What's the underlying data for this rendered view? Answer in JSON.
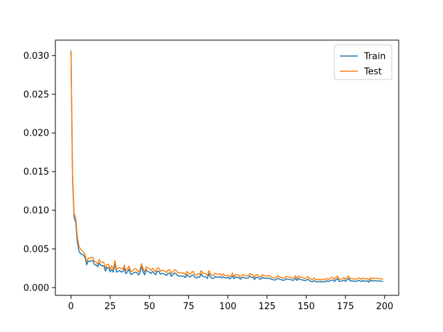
{
  "chart_data": {
    "type": "line",
    "title": "",
    "xlabel": "",
    "ylabel": "",
    "xlim": [
      -9.95,
      208.95
    ],
    "ylim": [
      -0.001,
      0.032
    ],
    "xticks": [
      0,
      25,
      50,
      75,
      100,
      125,
      150,
      175,
      200
    ],
    "yticks": [
      0.0,
      0.005,
      0.01,
      0.015,
      0.02,
      0.025,
      0.03
    ],
    "ytick_labels": [
      "0.000",
      "0.005",
      "0.010",
      "0.015",
      "0.020",
      "0.025",
      "0.030"
    ],
    "grid": false,
    "legend": {
      "placement": "top-right",
      "entries": [
        "Train",
        "Test"
      ]
    },
    "series": [
      {
        "name": "Train",
        "color": "#1f77b4",
        "x_range": [
          0,
          199
        ],
        "knots": [
          [
            0,
            0.0305
          ],
          [
            1,
            0.014
          ],
          [
            2,
            0.009
          ],
          [
            3,
            0.0085
          ],
          [
            4,
            0.006
          ],
          [
            5,
            0.0048
          ],
          [
            6,
            0.0044
          ],
          [
            8,
            0.0042
          ],
          [
            10,
            0.0034
          ],
          [
            15,
            0.0031
          ],
          [
            20,
            0.0026
          ],
          [
            25,
            0.0022
          ],
          [
            30,
            0.0022
          ],
          [
            35,
            0.002
          ],
          [
            40,
            0.0018
          ],
          [
            45,
            0.0019
          ],
          [
            50,
            0.0018
          ],
          [
            55,
            0.0019
          ],
          [
            60,
            0.0017
          ],
          [
            65,
            0.0016
          ],
          [
            70,
            0.0015
          ],
          [
            75,
            0.0015
          ],
          [
            80,
            0.0014
          ],
          [
            90,
            0.0013
          ],
          [
            100,
            0.0013
          ],
          [
            110,
            0.0012
          ],
          [
            120,
            0.0012
          ],
          [
            130,
            0.0011
          ],
          [
            140,
            0.0011
          ],
          [
            150,
            0.001
          ],
          [
            155,
            0.0008
          ],
          [
            160,
            0.0008
          ],
          [
            170,
            0.0009
          ],
          [
            180,
            0.0009
          ],
          [
            190,
            0.0008
          ],
          [
            199,
            0.0008
          ]
        ],
        "spikes": [
          [
            13,
            0.0035
          ],
          [
            23,
            0.0026
          ],
          [
            28,
            0.0031
          ],
          [
            34,
            0.0025
          ],
          [
            37,
            0.0024
          ],
          [
            45,
            0.0028
          ],
          [
            48,
            0.0023
          ],
          [
            52,
            0.0021
          ],
          [
            56,
            0.0021
          ],
          [
            66,
            0.0019
          ],
          [
            74,
            0.0017
          ],
          [
            83,
            0.0018
          ],
          [
            88,
            0.0018
          ],
          [
            103,
            0.0015
          ],
          [
            114,
            0.0015
          ],
          [
            145,
            0.0012
          ],
          [
            170,
            0.0012
          ],
          [
            177,
            0.0012
          ],
          [
            191,
            0.001
          ]
        ]
      },
      {
        "name": "Test",
        "color": "#ff7f0e",
        "x_range": [
          0,
          199
        ],
        "knots": [
          [
            0,
            0.0307
          ],
          [
            1,
            0.0145
          ],
          [
            2,
            0.0095
          ],
          [
            3,
            0.0091
          ],
          [
            4,
            0.0067
          ],
          [
            5,
            0.0054
          ],
          [
            6,
            0.005
          ],
          [
            8,
            0.0046
          ],
          [
            10,
            0.0038
          ],
          [
            15,
            0.0035
          ],
          [
            20,
            0.003
          ],
          [
            25,
            0.0026
          ],
          [
            30,
            0.0026
          ],
          [
            35,
            0.0024
          ],
          [
            40,
            0.0022
          ],
          [
            45,
            0.0023
          ],
          [
            50,
            0.0022
          ],
          [
            55,
            0.0023
          ],
          [
            60,
            0.0021
          ],
          [
            65,
            0.002
          ],
          [
            70,
            0.0019
          ],
          [
            75,
            0.0019
          ],
          [
            80,
            0.0018
          ],
          [
            90,
            0.0017
          ],
          [
            100,
            0.0016
          ],
          [
            110,
            0.0015
          ],
          [
            120,
            0.0015
          ],
          [
            130,
            0.0014
          ],
          [
            140,
            0.0014
          ],
          [
            150,
            0.0013
          ],
          [
            155,
            0.0011
          ],
          [
            160,
            0.0011
          ],
          [
            170,
            0.0012
          ],
          [
            180,
            0.0012
          ],
          [
            190,
            0.0011
          ],
          [
            199,
            0.0011
          ]
        ],
        "spikes": [
          [
            13,
            0.0039
          ],
          [
            23,
            0.003
          ],
          [
            28,
            0.0035
          ],
          [
            34,
            0.0029
          ],
          [
            37,
            0.0028
          ],
          [
            45,
            0.0031
          ],
          [
            48,
            0.0027
          ],
          [
            52,
            0.0025
          ],
          [
            56,
            0.0025
          ],
          [
            66,
            0.0023
          ],
          [
            74,
            0.0021
          ],
          [
            83,
            0.0022
          ],
          [
            88,
            0.0022
          ],
          [
            103,
            0.0019
          ],
          [
            114,
            0.0018
          ],
          [
            145,
            0.0015
          ],
          [
            170,
            0.0015
          ],
          [
            177,
            0.0015
          ],
          [
            191,
            0.0013
          ]
        ]
      }
    ]
  }
}
